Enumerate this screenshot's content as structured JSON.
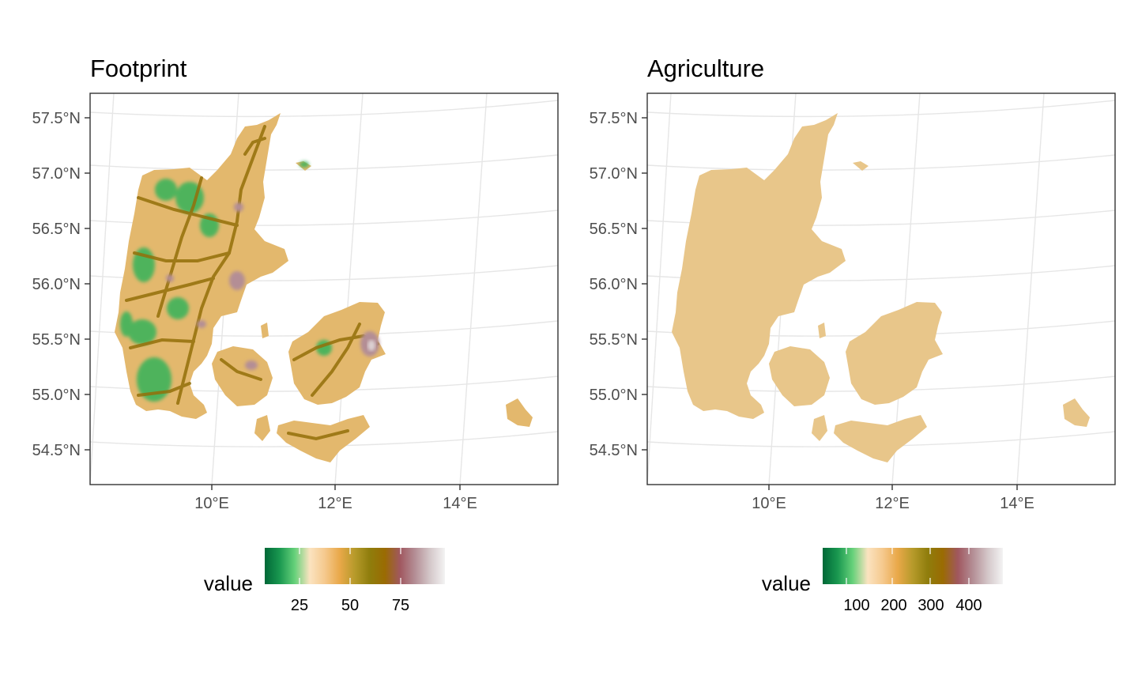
{
  "panels": [
    {
      "id": "footprint",
      "title": "Footprint",
      "lat_ticks": [
        "57.5°N",
        "57.0°N",
        "56.5°N",
        "56.0°N",
        "55.5°N",
        "55.0°N",
        "54.5°N"
      ],
      "lon_ticks": [
        "10°E",
        "12°E",
        "14°E"
      ],
      "legend": {
        "title": "value",
        "ticks": [
          "25",
          "50",
          "75"
        ],
        "colors": [
          "#006837",
          "#1a9850",
          "#66d17a",
          "#fbe3c0",
          "#f5c98e",
          "#e9a849",
          "#b69a2a",
          "#8f7d0c",
          "#9a6b02",
          "#a0575f",
          "#b48e95",
          "#d4c7c9",
          "#f3f3f3"
        ]
      }
    },
    {
      "id": "agriculture",
      "title": "Agriculture",
      "lat_ticks": [
        "57.5°N",
        "57.0°N",
        "56.5°N",
        "56.0°N",
        "55.5°N",
        "55.0°N",
        "54.5°N"
      ],
      "lon_ticks": [
        "10°E",
        "12°E",
        "14°E"
      ],
      "legend": {
        "title": "value",
        "ticks": [
          "100",
          "200",
          "300",
          "400"
        ],
        "colors": [
          "#006837",
          "#1a9850",
          "#66d17a",
          "#fbe3c0",
          "#f5c98e",
          "#e9a849",
          "#b69a2a",
          "#8f7d0c",
          "#9a6b02",
          "#a0575f",
          "#b48e95",
          "#d4c7c9",
          "#f3f3f3"
        ]
      }
    }
  ],
  "map_colors": {
    "land_fp": "#e3b86d",
    "road_fp": "#9a7209",
    "city_fp": "#b48e95",
    "green_fp": "#1f9e4a",
    "land_ag_low": "#7fd88a",
    "land_ag_mid": "#e8c68a",
    "land_ag_high": "#8f7d0c",
    "land_ag_peak": "#9a5a5f",
    "land_ag_max": "#d9d4d4"
  }
}
